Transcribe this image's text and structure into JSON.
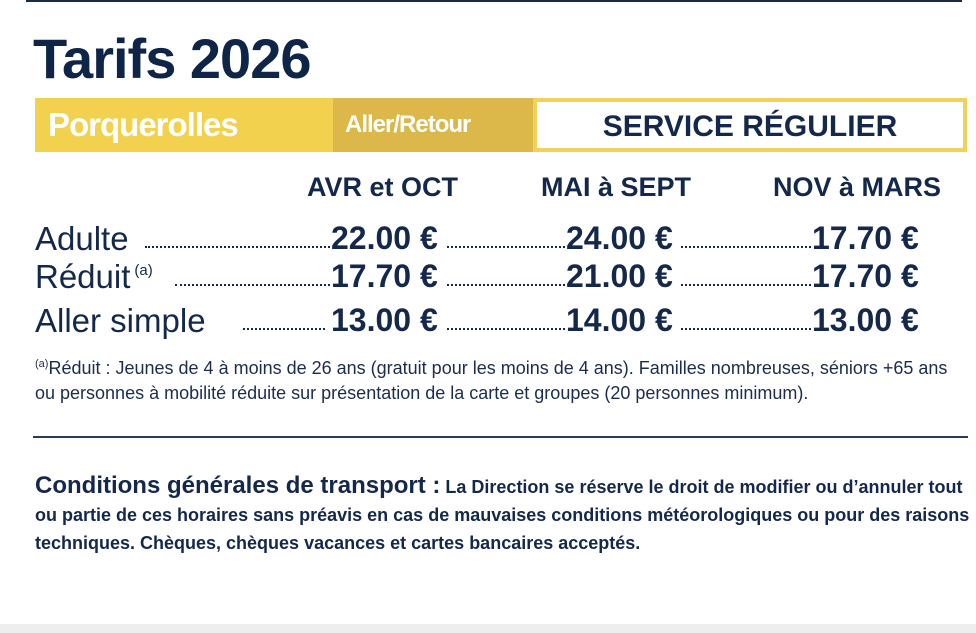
{
  "title": "Tarifs 2026",
  "banner": {
    "destination": "Porquerolles",
    "trip_type": "Aller/Retour",
    "service": "SERVICE RÉGULIER"
  },
  "colors": {
    "navy": "#14284b",
    "yellow": "#f2d14f",
    "dark_yellow": "#dcb84a"
  },
  "columns": [
    "AVR et OCT",
    "MAI à SEPT",
    "NOV à MARS"
  ],
  "rows": [
    {
      "label": "Adulte",
      "note": "",
      "prices": [
        "22.00 €",
        "24.00 €",
        "17.70 €"
      ]
    },
    {
      "label": "Réduit",
      "note": "(a)",
      "prices": [
        "17.70 €",
        "21.00 €",
        "17.70 €"
      ]
    },
    {
      "label": "Aller simple",
      "note": "",
      "prices": [
        "13.00 €",
        "14.00 €",
        "13.00 €"
      ]
    }
  ],
  "footnote": {
    "marker": "(a)",
    "line1": "Réduit : Jeunes de 4 à moins de 26 ans (gratuit pour les moins de 4 ans). Familles nombreuses, séniors +65 ans",
    "line2": "ou personnes à mobilité réduite sur présentation de la carte et groupes (20 personnes minimum)."
  },
  "conditions": {
    "heading": "Conditions générales de transport :",
    "text": "La Direction se réserve le droit de modifier ou d’annuler tout ou partie de ces horaires sans préavis en cas de mauvaises conditions météorologiques ou pour des raisons techniques. Chèques, chèques vacances et cartes bancaires acceptés."
  }
}
